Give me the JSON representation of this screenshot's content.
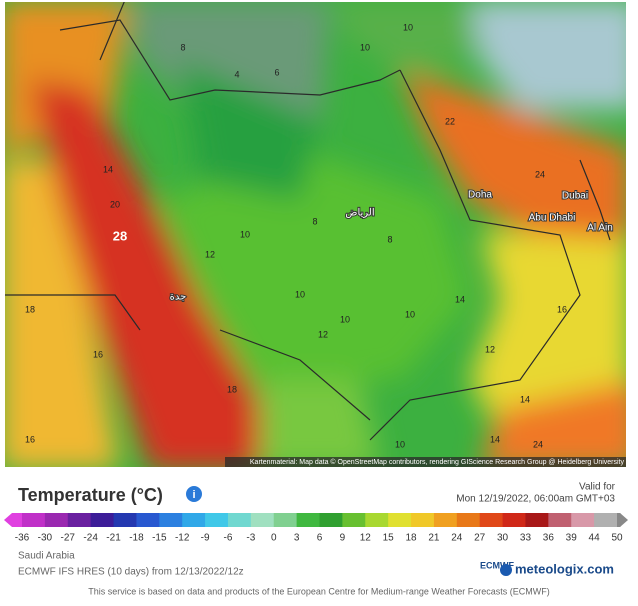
{
  "map": {
    "labels": [
      "28",
      "Doha",
      "Dubai",
      "Abu Dhabi",
      "Al Ain",
      "الرياض",
      "جدة",
      "10",
      "10",
      "8",
      "4",
      "6",
      "22",
      "24",
      "20",
      "18",
      "16",
      "16",
      "12",
      "10",
      "8",
      "8",
      "10",
      "10",
      "12",
      "10",
      "14",
      "16",
      "12",
      "14",
      "10",
      "14",
      "24",
      "18",
      "14"
    ]
  },
  "attribution": "Kartenmaterial: Map data © OpenStreetMap contributors, rendering GIScience Research Group @ Heidelberg University",
  "legend": {
    "title": "Temperature (°C)",
    "valid_label": "Valid for",
    "valid_time": "Mon 12/19/2022, 06:00am GMT+03",
    "colorbar": {
      "ticks": [
        -36,
        -30,
        -27,
        -24,
        -21,
        -18,
        -15,
        -12,
        -9,
        -6,
        -3,
        0,
        3,
        6,
        9,
        12,
        15,
        18,
        21,
        24,
        27,
        30,
        33,
        36,
        39,
        44,
        50
      ],
      "colors": [
        "#e040e0",
        "#c030c8",
        "#9a28b0",
        "#6a20a0",
        "#3c1c98",
        "#2438b0",
        "#2858d0",
        "#2c80e0",
        "#30a8e8",
        "#40c8e8",
        "#70d8d0",
        "#a0e0c0",
        "#80d090",
        "#40b840",
        "#30a030",
        "#68c030",
        "#a8d830",
        "#e0e030",
        "#f0c828",
        "#f0a020",
        "#e87818",
        "#e04818",
        "#d02818",
        "#a81818",
        "#c06070",
        "#d898a8",
        "#b0b0b0",
        "#888888"
      ]
    }
  },
  "region": "Saudi Arabia",
  "model": "ECMWF IFS HRES (10 days) from 12/13/2022/12z",
  "logos": [
    "ECMWF",
    "meteologix.com"
  ],
  "footer": "This service is based on data and products of the European Centre for Medium-range Weather Forecasts (ECMWF)"
}
